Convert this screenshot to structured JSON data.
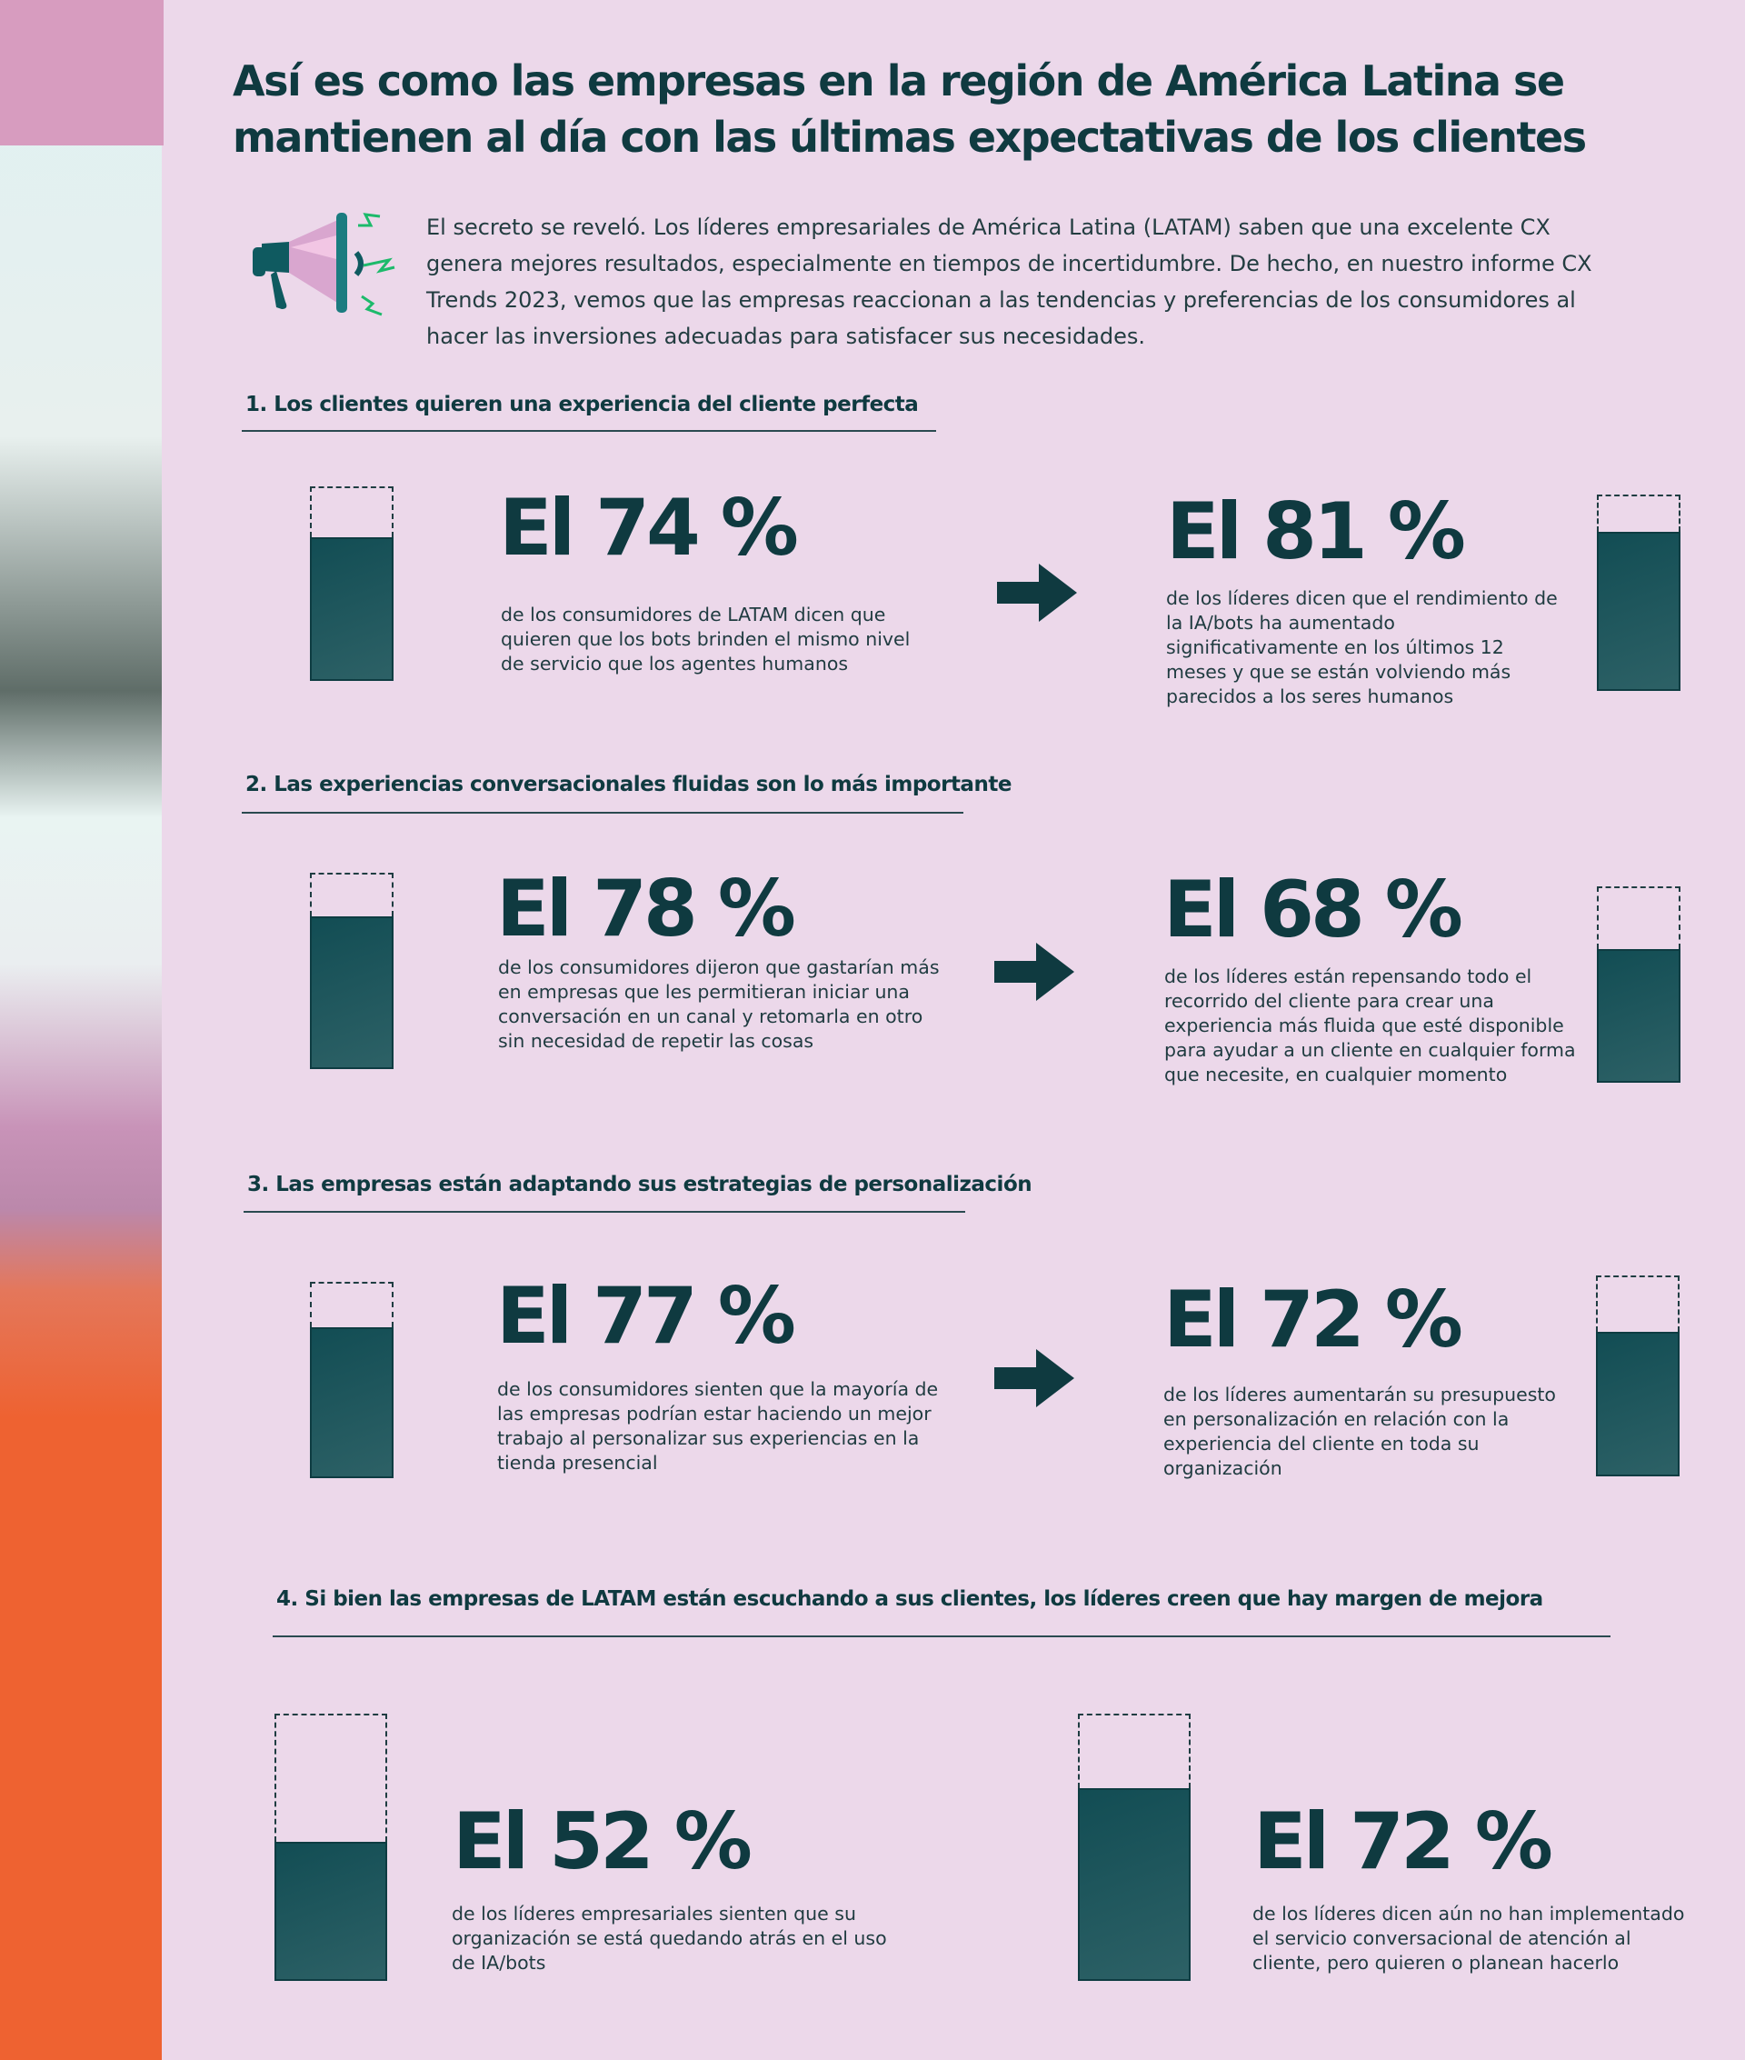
{
  "title": "Así es como las empresas en la región de América Latina se mantienen al día con las últimas expectativas de los clientes",
  "intro": "El secreto se reveló. Los líderes empresariales de América Latina (LATAM) saben que una excelente CX genera mejores resultados, especialmente en tiempos de incertidumbre. De hecho, en nuestro informe CX Trends 2023, vemos que las empresas reaccionan a las tendencias y preferencias de los consumidores al hacer las inversiones adecuadas para satisfacer sus necesidades.",
  "icons": {
    "intro": "megaphone-icon",
    "arrow": "arrow-right-icon",
    "gauge": "percentage-gauge"
  },
  "colors": {
    "background": "#ecd8ea",
    "accent": "#0f3a40",
    "fill": "#124d54"
  },
  "sections": [
    {
      "heading": "1.  Los clientes quieren una experiencia del cliente perfecta",
      "left": {
        "stat": "El 74 %",
        "percent": 74,
        "text": "de los consumidores de LATAM dicen que quieren que los bots brinden el mismo nivel de servicio que los agentes humanos"
      },
      "right": {
        "stat": "El 81 %",
        "percent": 81,
        "text": "de los líderes dicen que el rendimiento de la IA/bots ha aumentado significativamente en los últimos 12 meses y que se están volviendo más parecidos a los seres humanos"
      }
    },
    {
      "heading": "2.  Las experiencias conversacionales fluidas son lo más importante",
      "left": {
        "stat": "El 78 %",
        "percent": 78,
        "text": "de los consumidores dijeron que gastarían más en empresas que les permitieran iniciar una conversación en un canal y retomarla en otro sin necesidad de repetir las cosas"
      },
      "right": {
        "stat": "El 68 %",
        "percent": 68,
        "text": "de los líderes están repensando todo el recorrido del cliente para crear una experiencia más fluida que esté disponible para ayudar a un cliente en cualquier forma que necesite, en cualquier momento"
      }
    },
    {
      "heading": "3.  Las empresas están adaptando sus estrategias de personalización",
      "left": {
        "stat": "El 77 %",
        "percent": 77,
        "text": "de los consumidores sienten que la mayoría de las empresas podrían estar haciendo un mejor trabajo al personalizar sus experiencias en la tienda presencial"
      },
      "right": {
        "stat": "El 72 %",
        "percent": 72,
        "text": "de los líderes aumentarán su presupuesto en personalización en relación con la experiencia del cliente en toda su organización"
      }
    },
    {
      "heading": "4.  Si bien las empresas de LATAM están escuchando a sus clientes, los líderes creen que hay margen de mejora",
      "left": {
        "stat": "El 52 %",
        "percent": 52,
        "text": "de los líderes empresariales sienten que su organización se está quedando atrás en el uso de IA/bots"
      },
      "right": {
        "stat": "El 72 %",
        "percent": 72,
        "text": "de los líderes dicen aún no han implementado el servicio conversacional de atención al cliente, pero quieren o planean hacerlo"
      }
    }
  ]
}
